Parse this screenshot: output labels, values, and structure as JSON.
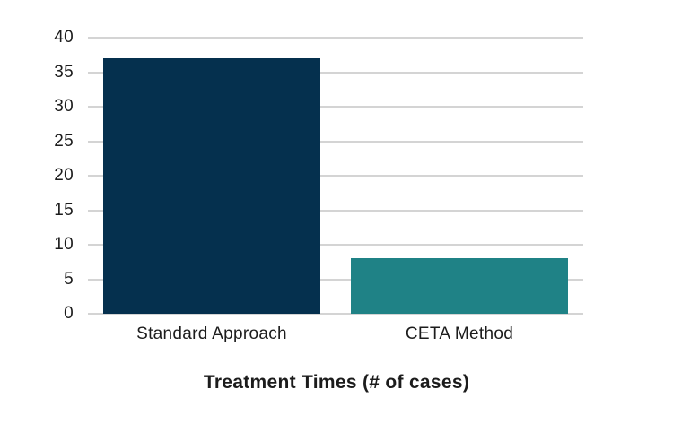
{
  "chart_data": {
    "type": "bar",
    "categories": [
      "Standard Approach",
      "CETA Method"
    ],
    "values": [
      37,
      8
    ],
    "title": "Treatment Times (# of cases)",
    "xlabel": "Treatment Times (# of cases)",
    "ylabel": "",
    "ylim": [
      0,
      40
    ],
    "yticks": [
      0,
      5,
      10,
      15,
      20,
      25,
      30,
      35,
      40
    ],
    "grid": true,
    "legend": "none",
    "bar_colors": [
      "#05304e",
      "#1f8286"
    ],
    "gridline_color": "#d4d4d4",
    "text_color": "#1c1c1c",
    "background_color": "#ffffff"
  }
}
